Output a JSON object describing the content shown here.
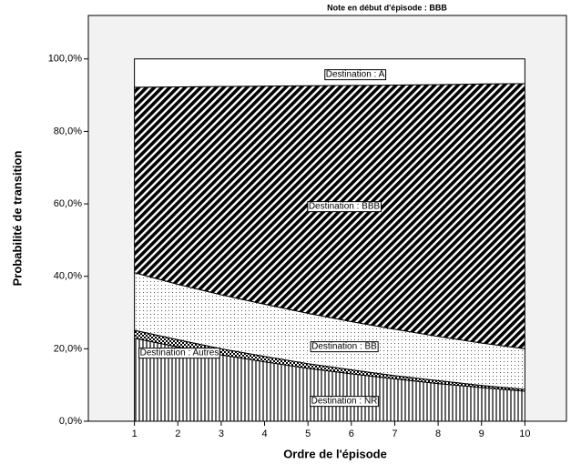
{
  "chart_data": {
    "type": "stacked_area",
    "title": "Note en début d'épisode : BBB",
    "xlabel": "Ordre de l'épisode",
    "ylabel": "Probabilité de transition",
    "x": [
      1,
      2,
      3,
      4,
      5,
      6,
      7,
      8,
      9,
      10
    ],
    "xlim": [
      0,
      11
    ],
    "xticks": [
      1,
      2,
      3,
      4,
      5,
      6,
      7,
      8,
      9,
      10
    ],
    "ylim": [
      0,
      112
    ],
    "yticks": [
      {
        "value": 0,
        "label": "0,0%"
      },
      {
        "value": 20,
        "label": "20,0%"
      },
      {
        "value": 40,
        "label": "40,0%"
      },
      {
        "value": 60,
        "label": "60,0%"
      },
      {
        "value": 80,
        "label": "80,0%"
      },
      {
        "value": 100,
        "label": "100,0%"
      }
    ],
    "series": [
      {
        "name": "Destination : NR",
        "color": "#000000",
        "pattern": "vertical",
        "values": [
          22.9,
          20.5,
          18.3,
          16.4,
          14.6,
          13.1,
          11.7,
          10.4,
          9.3,
          8.3
        ]
      },
      {
        "name": "Destination : Autres",
        "color": "#000000",
        "pattern": "checker",
        "values": [
          2.2,
          2.0,
          1.7,
          1.5,
          1.3,
          1.1,
          0.9,
          0.8,
          0.6,
          0.5
        ]
      },
      {
        "name": "Destination : BB",
        "color": "#000000",
        "pattern": "dots",
        "values": [
          15.9,
          15.3,
          14.9,
          14.4,
          13.9,
          13.3,
          12.8,
          12.2,
          11.7,
          11.2
        ]
      },
      {
        "name": "Destination : BBB",
        "color": "#000000",
        "pattern": "diagonal",
        "values": [
          51.2,
          54.5,
          57.5,
          60.2,
          62.8,
          65.2,
          67.4,
          69.5,
          71.5,
          73.2
        ]
      },
      {
        "name": "Destination : A",
        "color": "#ffffff",
        "pattern": "none",
        "values": [
          7.8,
          7.7,
          7.6,
          7.5,
          7.4,
          7.3,
          7.2,
          7.1,
          6.9,
          6.8
        ]
      }
    ]
  }
}
